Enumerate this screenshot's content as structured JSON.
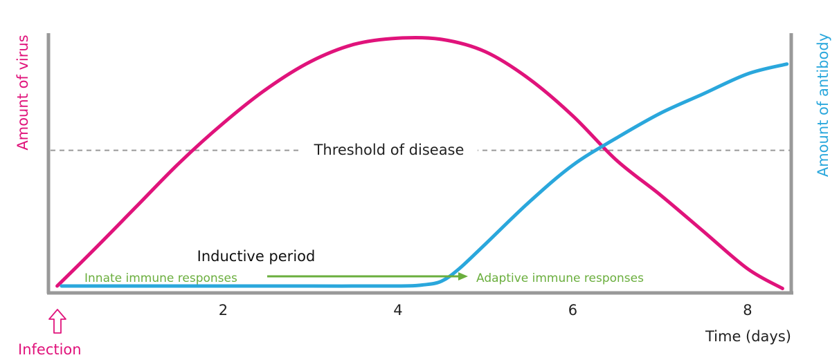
{
  "chart_data": {
    "type": "line",
    "title": "",
    "xlabel": "Time (days)",
    "ylabel_left": "Amount of virus",
    "ylabel_right": "Amount of antibody",
    "xlim": [
      0,
      8.5
    ],
    "ylim": [
      0,
      100
    ],
    "x_ticks": [
      2,
      4,
      6,
      8
    ],
    "grid": false,
    "series": [
      {
        "name": "Amount of virus",
        "color": "#e0137b",
        "x": [
          0.1,
          0.5,
          1,
          1.5,
          2,
          2.5,
          3,
          3.5,
          4,
          4.5,
          5,
          5.5,
          6,
          6.5,
          7,
          7.5,
          8,
          8.4
        ],
        "y": [
          0,
          14,
          32,
          50,
          66,
          80,
          91,
          98,
          100.5,
          100,
          95,
          84,
          69,
          51,
          37,
          22,
          7,
          -1
        ]
      },
      {
        "name": "Amount of antibody",
        "color": "#2aa7dc",
        "x": [
          0.15,
          1,
          2,
          3,
          4,
          4.3,
          4.5,
          4.7,
          5,
          5.5,
          6,
          6.5,
          7,
          7.5,
          8,
          8.45
        ],
        "y": [
          0,
          0,
          0,
          0,
          0,
          0.5,
          2,
          7,
          17,
          34,
          49,
          60,
          70,
          78,
          86,
          90
        ]
      }
    ],
    "threshold": {
      "label": "Threshold of disease",
      "y": 55
    },
    "annotations": {
      "inductive_period": "Inductive period",
      "innate": "Innate immune responses",
      "adaptive": "Adaptive immune responses",
      "infection": "Infection"
    },
    "colors": {
      "virus": "#e0137b",
      "antibody": "#2aa7dc",
      "responses": "#6aae3d",
      "axis": "#999999",
      "threshold": "#999999"
    }
  }
}
